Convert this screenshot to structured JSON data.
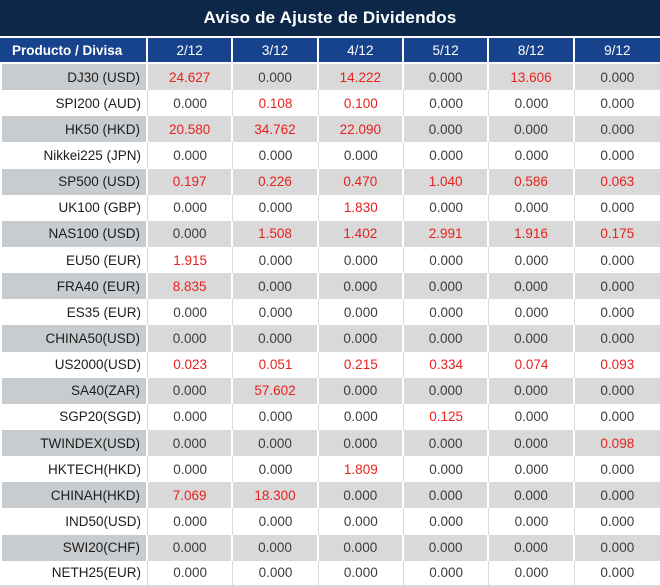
{
  "chart_data": {
    "type": "table",
    "title": "Aviso de Ajuste de Dividendos",
    "columns": [
      "Producto / Divisa",
      "2/12",
      "3/12",
      "4/12",
      "5/12",
      "8/12",
      "9/12"
    ],
    "rows": [
      {
        "product": "DJ30 (USD)",
        "values": [
          "24.627",
          "0.000",
          "14.222",
          "0.000",
          "13.606",
          "0.000"
        ]
      },
      {
        "product": "SPI200 (AUD)",
        "values": [
          "0.000",
          "0.108",
          "0.100",
          "0.000",
          "0.000",
          "0.000"
        ]
      },
      {
        "product": "HK50 (HKD)",
        "values": [
          "20.580",
          "34.762",
          "22.090",
          "0.000",
          "0.000",
          "0.000"
        ]
      },
      {
        "product": "Nikkei225 (JPN)",
        "values": [
          "0.000",
          "0.000",
          "0.000",
          "0.000",
          "0.000",
          "0.000"
        ]
      },
      {
        "product": "SP500 (USD)",
        "values": [
          "0.197",
          "0.226",
          "0.470",
          "1.040",
          "0.586",
          "0.063"
        ]
      },
      {
        "product": "UK100 (GBP)",
        "values": [
          "0.000",
          "0.000",
          "1.830",
          "0.000",
          "0.000",
          "0.000"
        ]
      },
      {
        "product": "NAS100 (USD)",
        "values": [
          "0.000",
          "1.508",
          "1.402",
          "2.991",
          "1.916",
          "0.175"
        ]
      },
      {
        "product": "EU50 (EUR)",
        "values": [
          "1.915",
          "0.000",
          "0.000",
          "0.000",
          "0.000",
          "0.000"
        ]
      },
      {
        "product": "FRA40 (EUR)",
        "values": [
          "8.835",
          "0.000",
          "0.000",
          "0.000",
          "0.000",
          "0.000"
        ]
      },
      {
        "product": "ES35 (EUR)",
        "values": [
          "0.000",
          "0.000",
          "0.000",
          "0.000",
          "0.000",
          "0.000"
        ]
      },
      {
        "product": "CHINA50(USD)",
        "values": [
          "0.000",
          "0.000",
          "0.000",
          "0.000",
          "0.000",
          "0.000"
        ]
      },
      {
        "product": "US2000(USD)",
        "values": [
          "0.023",
          "0.051",
          "0.215",
          "0.334",
          "0.074",
          "0.093"
        ]
      },
      {
        "product": "SA40(ZAR)",
        "values": [
          "0.000",
          "57.602",
          "0.000",
          "0.000",
          "0.000",
          "0.000"
        ]
      },
      {
        "product": "SGP20(SGD)",
        "values": [
          "0.000",
          "0.000",
          "0.000",
          "0.125",
          "0.000",
          "0.000"
        ]
      },
      {
        "product": "TWINDEX(USD)",
        "values": [
          "0.000",
          "0.000",
          "0.000",
          "0.000",
          "0.000",
          "0.098"
        ]
      },
      {
        "product": "HKTECH(HKD)",
        "values": [
          "0.000",
          "0.000",
          "1.809",
          "0.000",
          "0.000",
          "0.000"
        ]
      },
      {
        "product": "CHINAH(HKD)",
        "values": [
          "7.069",
          "18.300",
          "0.000",
          "0.000",
          "0.000",
          "0.000"
        ]
      },
      {
        "product": "IND50(USD)",
        "values": [
          "0.000",
          "0.000",
          "0.000",
          "0.000",
          "0.000",
          "0.000"
        ]
      },
      {
        "product": "SWI20(CHF)",
        "values": [
          "0.000",
          "0.000",
          "0.000",
          "0.000",
          "0.000",
          "0.000"
        ]
      },
      {
        "product": "NETH25(EUR)",
        "values": [
          "0.000",
          "0.000",
          "0.000",
          "0.000",
          "0.000",
          "0.000"
        ]
      }
    ]
  },
  "colors": {
    "title_bg": "#0c2747",
    "header_bg": "#17438c",
    "header_text": "#ffffff",
    "band_grey": "#d9d9d9",
    "band_grey_first_col": "#c9cccf",
    "white_row_border": "#d9d9d9",
    "label_text": "#1c1c1c",
    "value_zero": "#3c3c3c",
    "value_nonzero": "#e8201c"
  }
}
